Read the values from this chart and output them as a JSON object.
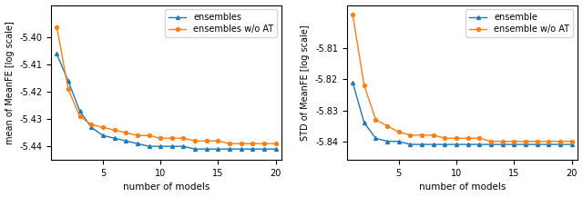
{
  "x": [
    1,
    2,
    3,
    4,
    5,
    6,
    7,
    8,
    9,
    10,
    11,
    12,
    13,
    14,
    15,
    16,
    17,
    18,
    19,
    20
  ],
  "left_blue": [
    -5.406,
    -5.416,
    -5.427,
    -5.433,
    -5.436,
    -5.437,
    -5.438,
    -5.439,
    -5.44,
    -5.44,
    -5.44,
    -5.44,
    -5.441,
    -5.441,
    -5.441,
    -5.441,
    -5.441,
    -5.441,
    -5.441,
    -5.441
  ],
  "left_orange": [
    -5.396,
    -5.419,
    -5.429,
    -5.432,
    -5.433,
    -5.434,
    -5.435,
    -5.436,
    -5.436,
    -5.437,
    -5.437,
    -5.437,
    -5.438,
    -5.438,
    -5.438,
    -5.439,
    -5.439,
    -5.439,
    -5.439,
    -5.439
  ],
  "right_blue": [
    -5.821,
    -5.834,
    -5.839,
    -5.84,
    -5.84,
    -5.841,
    -5.841,
    -5.841,
    -5.841,
    -5.841,
    -5.841,
    -5.841,
    -5.841,
    -5.841,
    -5.841,
    -5.841,
    -5.841,
    -5.841,
    -5.841,
    -5.841
  ],
  "right_orange": [
    -5.799,
    -5.822,
    -5.833,
    -5.835,
    -5.837,
    -5.838,
    -5.838,
    -5.838,
    -5.839,
    -5.839,
    -5.839,
    -5.839,
    -5.84,
    -5.84,
    -5.84,
    -5.84,
    -5.84,
    -5.84,
    -5.84,
    -5.84
  ],
  "left_ylabel": "mean of MeanFE [log scale]",
  "right_ylabel": "STD of MeanFE [log scale]",
  "xlabel": "number of models",
  "left_ylim": [
    -5.445,
    -5.388
  ],
  "right_ylim": [
    -5.846,
    -5.796
  ],
  "left_yticks": [
    -5.4,
    -5.41,
    -5.42,
    -5.43,
    -5.44
  ],
  "right_yticks": [
    -5.81,
    -5.82,
    -5.83,
    -5.84
  ],
  "left_legend": [
    "ensembles",
    "ensembles w/o AT"
  ],
  "right_legend": [
    "ensemble",
    "ensemble w/o AT"
  ],
  "blue_color": "#1f77b4",
  "orange_color": "#ff7f0e",
  "xlim": [
    0.5,
    20.5
  ],
  "xticks": [
    5,
    10,
    15,
    20
  ],
  "fig_width": 6.4,
  "fig_height": 2.17,
  "dpi": 100
}
